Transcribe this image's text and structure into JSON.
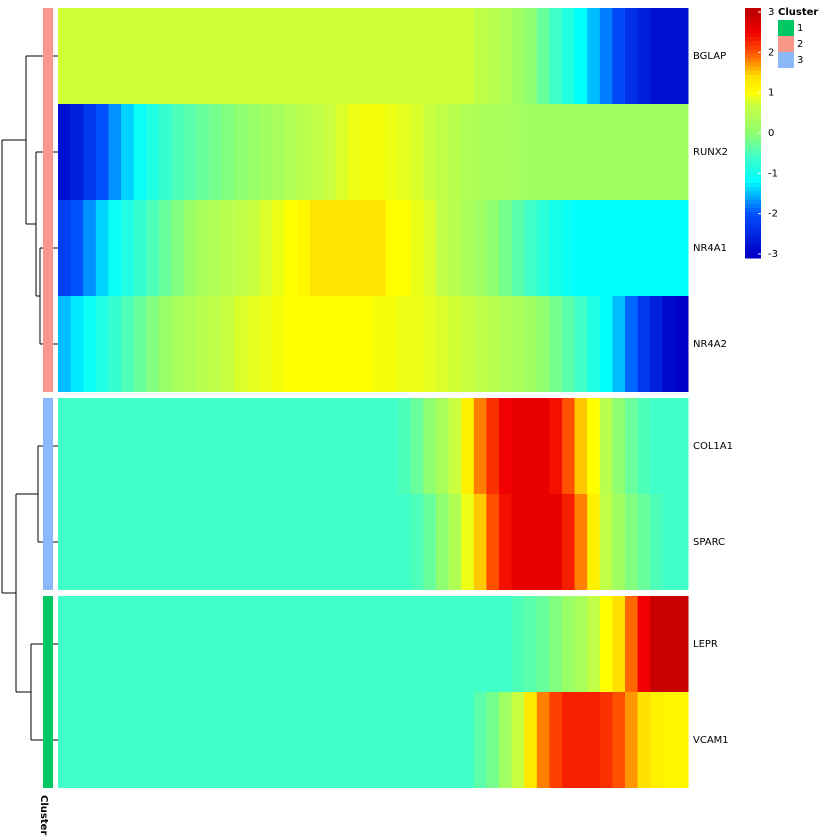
{
  "chart_data": {
    "type": "heatmap",
    "series": [
      {
        "name": "BGLAP",
        "values": [
          0.75,
          0.75,
          0.75,
          0.75,
          0.75,
          0.75,
          0.75,
          0.75,
          0.75,
          0.75,
          0.75,
          0.75,
          0.75,
          0.75,
          0.75,
          0.75,
          0.75,
          0.75,
          0.75,
          0.75,
          0.75,
          0.75,
          0.75,
          0.75,
          0.75,
          0.75,
          0.75,
          0.75,
          0.75,
          0.75,
          0.75,
          0.75,
          0.75,
          0.6,
          0.5,
          0.4,
          0.2,
          0,
          -0.3,
          -0.6,
          -0.9,
          -1.2,
          -1.5,
          -1.8,
          -2.1,
          -2.4,
          -2.6,
          -2.8,
          -2.8,
          -2.8
        ]
      },
      {
        "name": "RUNX2",
        "values": [
          -2.8,
          -2.6,
          -2.3,
          -2,
          -1.7,
          -1.4,
          -1.1,
          -0.9,
          -0.7,
          -0.5,
          -0.4,
          -0.3,
          -0.2,
          -0.1,
          0,
          0.1,
          0.2,
          0.3,
          0.4,
          0.5,
          0.6,
          0.7,
          0.8,
          0.9,
          0.95,
          0.95,
          0.9,
          0.85,
          0.8,
          0.7,
          0.6,
          0.5,
          0.4,
          0.35,
          0.3,
          0.3,
          0.25,
          0.2,
          0.2,
          0.2,
          0.2,
          0.2,
          0.2,
          0.2,
          0.2,
          0.2,
          0.2,
          0.2,
          0.2,
          0.2
        ]
      },
      {
        "name": "NR4A1",
        "values": [
          -2.2,
          -2,
          -1.7,
          -1.4,
          -1.1,
          -0.9,
          -0.7,
          -0.5,
          -0.3,
          -0.1,
          0.1,
          0.3,
          0.4,
          0.5,
          0.6,
          0.7,
          0.8,
          0.9,
          1,
          1.1,
          1.35,
          1.35,
          1.35,
          1.35,
          1.35,
          1.35,
          1,
          1,
          0.9,
          0.8,
          0.6,
          0.5,
          0.3,
          0.2,
          0,
          -0.2,
          -0.4,
          -0.6,
          -0.8,
          -1,
          -1.1,
          -1.2,
          -1.2,
          -1.2,
          -1.2,
          -1.2,
          -1.2,
          -1.2,
          -1.2,
          -1.2
        ]
      },
      {
        "name": "NR4A2",
        "values": [
          -1.5,
          -1.3,
          -1.1,
          -0.9,
          -0.7,
          -0.5,
          -0.3,
          -0.1,
          0.1,
          0.3,
          0.4,
          0.5,
          0.6,
          0.7,
          0.8,
          0.85,
          0.9,
          0.95,
          1,
          1,
          1,
          1,
          1,
          1,
          1,
          0.95,
          0.95,
          0.9,
          0.9,
          0.85,
          0.8,
          0.75,
          0.7,
          0.6,
          0.5,
          0.4,
          0.3,
          0.2,
          0,
          -0.2,
          -0.4,
          -0.6,
          -0.9,
          -1.2,
          -1.5,
          -1.9,
          -2.3,
          -2.6,
          -2.9,
          -3
        ]
      },
      {
        "name": "COL1A1",
        "values": [
          -0.6,
          -0.6,
          -0.6,
          -0.6,
          -0.6,
          -0.6,
          -0.6,
          -0.6,
          -0.6,
          -0.6,
          -0.6,
          -0.6,
          -0.6,
          -0.6,
          -0.6,
          -0.6,
          -0.6,
          -0.6,
          -0.6,
          -0.6,
          -0.6,
          -0.6,
          -0.6,
          -0.6,
          -0.6,
          -0.6,
          -0.6,
          -0.5,
          -0.3,
          0,
          0.3,
          0.7,
          1.2,
          1.8,
          2.2,
          2.5,
          2.6,
          2.6,
          2.6,
          2.4,
          2,
          1.5,
          1,
          0.5,
          0,
          -0.3,
          -0.5,
          -0.6,
          -0.6,
          -0.6
        ]
      },
      {
        "name": "SPARC",
        "values": [
          -0.6,
          -0.6,
          -0.6,
          -0.6,
          -0.6,
          -0.6,
          -0.6,
          -0.6,
          -0.6,
          -0.6,
          -0.6,
          -0.6,
          -0.6,
          -0.6,
          -0.6,
          -0.6,
          -0.6,
          -0.6,
          -0.6,
          -0.6,
          -0.6,
          -0.6,
          -0.6,
          -0.6,
          -0.6,
          -0.6,
          -0.6,
          -0.6,
          -0.5,
          -0.3,
          0,
          0.4,
          0.9,
          1.5,
          2,
          2.4,
          2.6,
          2.6,
          2.6,
          2.6,
          2.3,
          1.8,
          1.2,
          0.6,
          0.2,
          -0.1,
          -0.3,
          -0.5,
          -0.6,
          -0.6
        ]
      },
      {
        "name": "LEPR",
        "values": [
          -0.6,
          -0.6,
          -0.6,
          -0.6,
          -0.6,
          -0.6,
          -0.6,
          -0.6,
          -0.6,
          -0.6,
          -0.6,
          -0.6,
          -0.6,
          -0.6,
          -0.6,
          -0.6,
          -0.6,
          -0.6,
          -0.6,
          -0.6,
          -0.6,
          -0.6,
          -0.6,
          -0.6,
          -0.6,
          -0.6,
          -0.6,
          -0.6,
          -0.6,
          -0.6,
          -0.6,
          -0.6,
          -0.6,
          -0.6,
          -0.6,
          -0.6,
          -0.5,
          -0.4,
          -0.3,
          -0.1,
          0.1,
          0.3,
          0.6,
          1,
          1.4,
          1.9,
          2.5,
          2.9,
          2.9,
          2.9
        ]
      },
      {
        "name": "VCAM1",
        "values": [
          -0.6,
          -0.6,
          -0.6,
          -0.6,
          -0.6,
          -0.6,
          -0.6,
          -0.6,
          -0.6,
          -0.6,
          -0.6,
          -0.6,
          -0.6,
          -0.6,
          -0.6,
          -0.6,
          -0.6,
          -0.6,
          -0.6,
          -0.6,
          -0.6,
          -0.6,
          -0.6,
          -0.6,
          -0.6,
          -0.6,
          -0.6,
          -0.6,
          -0.6,
          -0.6,
          -0.6,
          -0.6,
          -0.6,
          -0.4,
          -0.2,
          0.2,
          0.7,
          1.3,
          1.8,
          2.1,
          2.3,
          2.3,
          2.3,
          2.2,
          2,
          1.7,
          1.4,
          1.2,
          1.1,
          1.1
        ]
      }
    ],
    "colorscale": [
      [
        -3,
        "#0000c8"
      ],
      [
        -2,
        "#0050ff"
      ],
      [
        -1.2,
        "#00ffff"
      ],
      [
        -0.6,
        "#40ffc8"
      ],
      [
        0,
        "#90ff70"
      ],
      [
        0.7,
        "#c8ff40"
      ],
      [
        1,
        "#ffff00"
      ],
      [
        1.4,
        "#ffe000"
      ],
      [
        2,
        "#ff5000"
      ],
      [
        2.5,
        "#f00000"
      ],
      [
        3,
        "#c00000"
      ]
    ],
    "zlim": [
      -3,
      3
    ],
    "colorbar_ticks": [
      -3,
      -2,
      -1,
      0,
      1,
      2,
      3
    ],
    "annotation": {
      "name": "Cluster",
      "rows": [
        "2",
        "2",
        "2",
        "2",
        "3",
        "3",
        "1",
        "1"
      ],
      "legend": [
        {
          "name": "1",
          "color": "#00c864"
        },
        {
          "name": "2",
          "color": "#f8978a"
        },
        {
          "name": "3",
          "color": "#8ab8f8"
        }
      ]
    }
  }
}
